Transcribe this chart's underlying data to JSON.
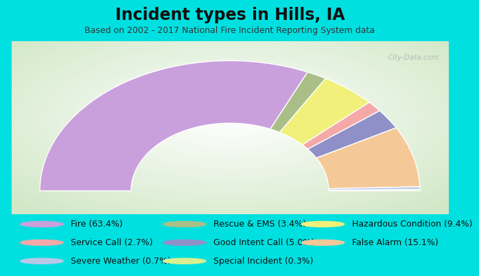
{
  "title": "Incident types in Hills, IA",
  "subtitle": "Based on 2002 - 2017 National Fire Incident Reporting System data",
  "background_outer": "#00e0e0",
  "background_inner_center": "#ffffff",
  "background_inner_edge": "#d0e8c8",
  "watermark": "City-Data.com",
  "segments": [
    {
      "label": "Fire",
      "pct": 63.4,
      "color": "#c9a0dc"
    },
    {
      "label": "Rescue & EMS",
      "pct": 3.4,
      "color": "#aabf88"
    },
    {
      "label": "Hazardous Condition",
      "pct": 9.4,
      "color": "#f0f07a"
    },
    {
      "label": "Service Call",
      "pct": 2.7,
      "color": "#f4a8a8"
    },
    {
      "label": "Good Intent Call",
      "pct": 5.0,
      "color": "#9090c8"
    },
    {
      "label": "False Alarm",
      "pct": 15.1,
      "color": "#f5c898"
    },
    {
      "label": "Severe Weather",
      "pct": 0.7,
      "color": "#b8c8e8"
    },
    {
      "label": "Special Incident",
      "pct": 0.3,
      "color": "#d8f090"
    }
  ],
  "legend_col1": [
    {
      "label": "Fire (63.4%)",
      "color": "#c9a0dc"
    },
    {
      "label": "Service Call (2.7%)",
      "color": "#f4a8a8"
    },
    {
      "label": "Severe Weather (0.7%)",
      "color": "#b8c8e8"
    }
  ],
  "legend_col2": [
    {
      "label": "Rescue & EMS (3.4%)",
      "color": "#aabf88"
    },
    {
      "label": "Good Intent Call (5.0%)",
      "color": "#9090c8"
    },
    {
      "label": "Special Incident (0.3%)",
      "color": "#d8f090"
    }
  ],
  "legend_col3": [
    {
      "label": "Hazardous Condition (9.4%)",
      "color": "#f0f07a"
    },
    {
      "label": "False Alarm (15.1%)",
      "color": "#f5c898"
    }
  ],
  "title_fontsize": 17,
  "subtitle_fontsize": 9,
  "legend_fontsize": 9
}
